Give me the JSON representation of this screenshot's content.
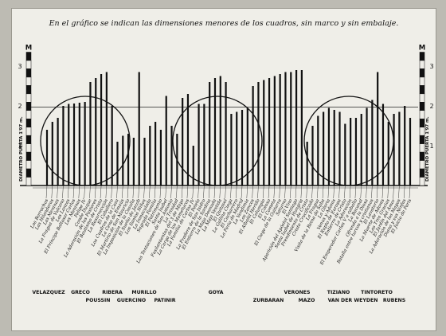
{
  "chart_data": {
    "type": "bar",
    "title": "En el gráfico se indican las dimensiones menores de los cuadros, sin marco y sin embalaje.",
    "scale_unit": "M",
    "yticks": [
      "1",
      "2",
      "3"
    ],
    "ylim": [
      0,
      3.35
    ],
    "door_label": "DIAMETRO PUERTA 1'97 m.",
    "door_value": 1.97,
    "grid": false,
    "paintings": [
      "Los Borrachos",
      "Las Hilanderas",
      "Las Meninas",
      "La Fragua de Vulcano",
      "Las Lanzas",
      "El Príncipe Baltasar Carlos",
      "Los Meninas",
      "Felipe IV",
      "Conde Duque",
      "La Adoración de los Pastores",
      "El Bautismo de Cristo",
      "La Resurrección",
      "El Caballero",
      "Los Cuadros de la Caza",
      "La Cena de Emaús",
      "El Martirio de San Mauricio",
      "La Imposición de la Casulla",
      "El Sueño de Jacob",
      "Los Santos Niños",
      "La Inmaculada",
      "Sagrada Familia",
      "El Patrimonio",
      "Santa Isabel",
      "Las Tentaciones de San Antonio",
      "La Trinidad",
      "Fusilamientos del 3 de Mayo",
      "La Carga de los Mamelucos",
      "La Familia de Carlos IV",
      "El Pelele",
      "La Pradera de San Isidro",
      "El Entierro de la Sardina",
      "La Maja Desnuda",
      "La Maja Vestida",
      "El Quitasol",
      "La Gallina Ciega",
      "El Cacharrero",
      "La Feria de Madrid",
      "La Vendimia",
      "Los Zancos",
      "El Albañil Herido",
      "El Columpio",
      "El Coloso",
      "La Cometa",
      "El Ciego de la Guitarra",
      "Saturno",
      "El Vino",
      "Aparición del Apóstol Santiago",
      "Santa Isabel de Hungría",
      "Prendimiento de Cristo",
      "Cristo Crucificado",
      "La Fragua",
      "Visita de la Reina de Saba",
      "La Gloria",
      "Venus y Adonis",
      "El Rapto de Europa",
      "Entierro de Cristo",
      "La Adoración",
      "El Emperador Carlos V a caballo",
      "La Bacanal",
      "Ofrenda a la Diosa",
      "Batalla entre turcos y cristianos",
      "El Lavatorio",
      "La Muerte de Adonis",
      "Las Tres Gracias",
      "El Jardín del Amor",
      "La Adoración de los Magos",
      "Diana y sus Ninfas",
      "El Juicio de Paris"
    ],
    "values": [
      1.4,
      1.6,
      1.7,
      2.0,
      2.05,
      2.06,
      2.08,
      2.1,
      2.6,
      2.7,
      2.8,
      2.85,
      2.0,
      1.1,
      1.25,
      1.3,
      1.2,
      2.85,
      1.2,
      1.5,
      1.6,
      1.4,
      2.25,
      1.5,
      1.3,
      2.2,
      2.3,
      1.0,
      2.05,
      2.05,
      2.6,
      2.7,
      2.75,
      2.6,
      1.8,
      1.85,
      1.9,
      1.95,
      2.5,
      2.6,
      2.65,
      2.7,
      2.75,
      2.8,
      2.85,
      2.85,
      2.9,
      2.9,
      1.1,
      1.5,
      1.75,
      1.85,
      1.95,
      1.9,
      1.85,
      1.55,
      1.7,
      1.7,
      1.8,
      1.95,
      2.15,
      2.85,
      2.05,
      1.6,
      1.8,
      1.85,
      2.0,
      1.7
    ]
  },
  "artists_top": [
    "VELAZQUEZ",
    "GRECO",
    "RIBERA",
    "MURILLO",
    "GOYA",
    "VERONES",
    "TIZIANO",
    "TINTORETO"
  ],
  "artists_bottom": [
    "POUSSIN",
    "GUERCINO",
    "PATINIR",
    "ZURBARAN",
    "MAZO",
    "VAN DER WEYDEN",
    "RUBENS"
  ]
}
